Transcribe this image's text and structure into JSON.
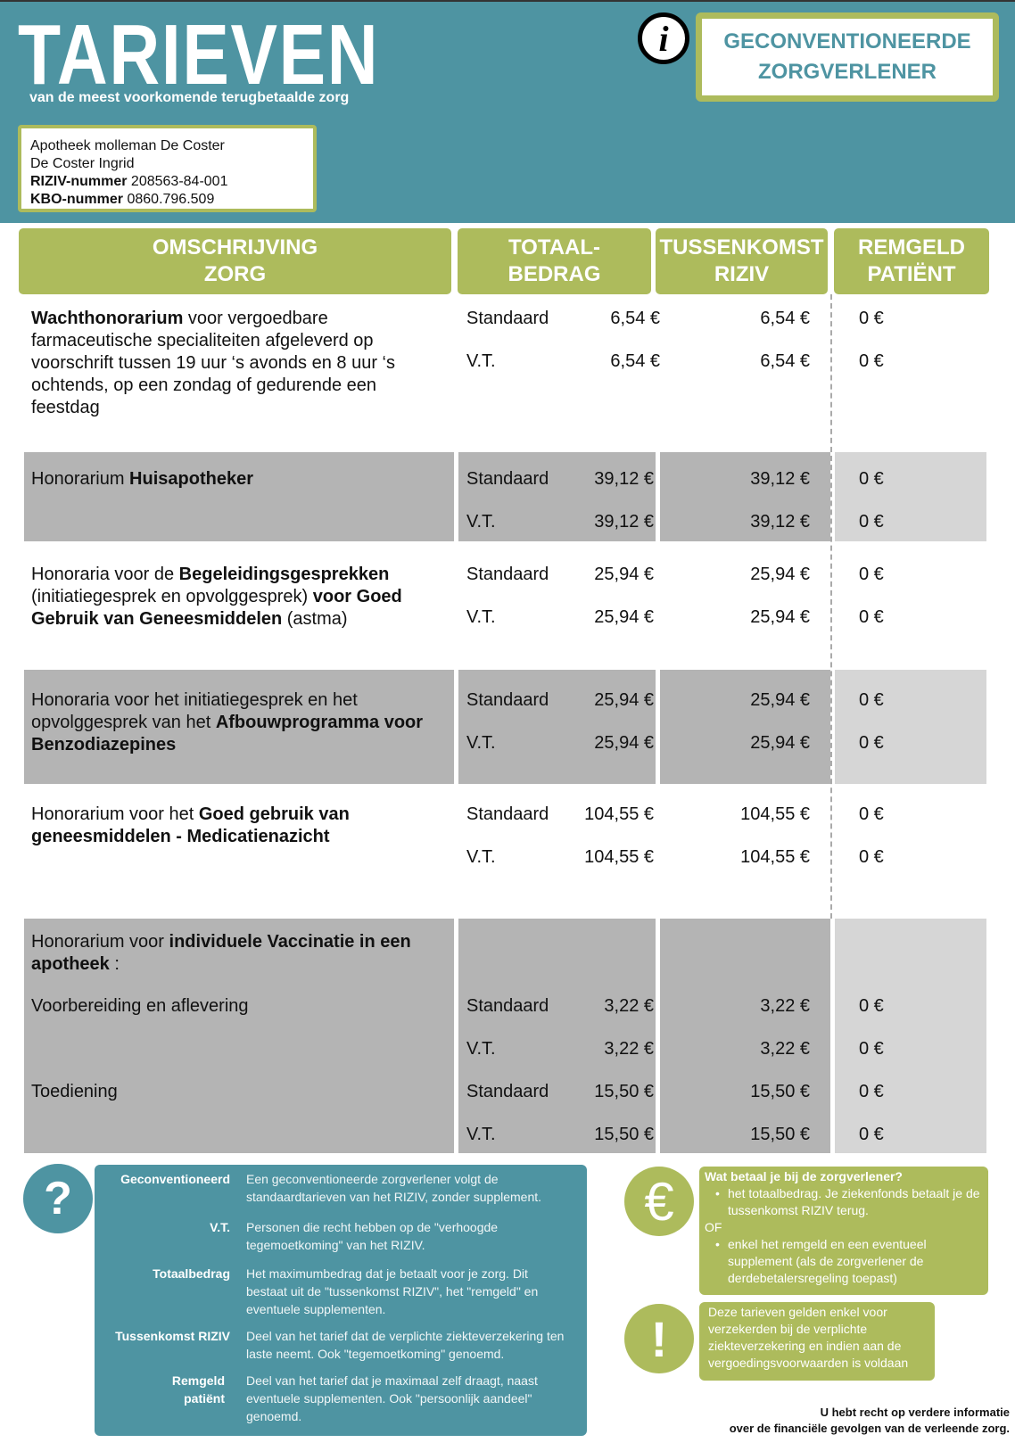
{
  "header": {
    "title": "TARIEVEN",
    "subtitle": "van de meest voorkomende terugbetaalde zorg",
    "badge_line1": "GECONVENTIONEERDE",
    "badge_line2": "ZORGVERLENER",
    "info_icon": "info-icon"
  },
  "pharmacy": {
    "name": "Apotheek molleman De Coster",
    "person": "De Coster Ingrid",
    "riziv_label": "RIZIV-nummer",
    "riziv_value": "208563-84-001",
    "kbo_label": "KBO-nummer",
    "kbo_value": "0860.796.509"
  },
  "columns": {
    "c1a": "OMSCHRIJVING",
    "c1b": "ZORG",
    "c2a": "TOTAAL-",
    "c2b": "BEDRAG",
    "c3a": "TUSSENKOMST",
    "c3b": "RIZIV",
    "c4a": "REMGELD",
    "c4b": "PATIËNT"
  },
  "colors": {
    "teal": "#4e94a2",
    "green": "#adbb5c",
    "gray": "#b4b4b4",
    "lightgray": "#d6d6d6"
  },
  "rows": [
    {
      "desc": [
        {
          "t": "Wachthonorarium",
          "b": true
        },
        {
          "t": " voor vergoedbare farmaceutische specialiteiten afgeleverd op voorschrift tussen 19 uur ‘s avonds en 8 uur ‘s ochtends, op een zondag of gedurende een feestdag",
          "b": false
        }
      ],
      "lines": [
        {
          "label": "Standaard",
          "totaal": "6,54 €",
          "tussenkomst": "6,54 €",
          "remgeld": "0 €"
        },
        {
          "label": "V.T.",
          "totaal": "6,54 €",
          "tussenkomst": "6,54 €",
          "remgeld": "0 €"
        }
      ]
    },
    {
      "desc": [
        {
          "t": "Honorarium ",
          "b": false
        },
        {
          "t": "Huisapotheker",
          "b": true
        }
      ],
      "lines": [
        {
          "label": "Standaard",
          "totaal": "39,12 €",
          "tussenkomst": "39,12 €",
          "remgeld": "0 €"
        },
        {
          "label": "V.T.",
          "totaal": "39,12 €",
          "tussenkomst": "39,12 €",
          "remgeld": "0 €"
        }
      ]
    },
    {
      "desc": [
        {
          "t": "Honoraria voor de ",
          "b": false
        },
        {
          "t": "Begeleidingsgesprekken",
          "b": true
        },
        {
          "t": " (initiatiegesprek en opvolggesprek) ",
          "b": false
        },
        {
          "t": "voor Goed Gebruik van Geneesmiddelen",
          "b": true
        },
        {
          "t": " (astma)",
          "b": false
        }
      ],
      "lines": [
        {
          "label": "Standaard",
          "totaal": "25,94 €",
          "tussenkomst": "25,94 €",
          "remgeld": "0 €"
        },
        {
          "label": "V.T.",
          "totaal": "25,94 €",
          "tussenkomst": "25,94 €",
          "remgeld": "0 €"
        }
      ]
    },
    {
      "desc": [
        {
          "t": "Honoraria voor het initiatiegesprek en het opvolggesprek van het ",
          "b": false
        },
        {
          "t": "Afbouwprogramma voor Benzodiazepines",
          "b": true
        }
      ],
      "lines": [
        {
          "label": "Standaard",
          "totaal": "25,94 €",
          "tussenkomst": "25,94 €",
          "remgeld": "0 €"
        },
        {
          "label": "V.T.",
          "totaal": "25,94 €",
          "tussenkomst": "25,94 €",
          "remgeld": "0 €"
        }
      ]
    },
    {
      "desc": [
        {
          "t": "Honorarium voor het ",
          "b": false
        },
        {
          "t": "Goed gebruik van geneesmiddelen - Medicatienazicht",
          "b": true
        }
      ],
      "lines": [
        {
          "label": "Standaard",
          "totaal": "104,55 €",
          "tussenkomst": "104,55 €",
          "remgeld": "0 €"
        },
        {
          "label": "V.T.",
          "totaal": "104,55 €",
          "tussenkomst": "104,55 €",
          "remgeld": "0 €"
        }
      ]
    },
    {
      "desc": [
        {
          "t": "Honorarium voor ",
          "b": false
        },
        {
          "t": "individuele Vaccinatie in een apotheek",
          "b": true
        },
        {
          "t": " :",
          "b": false
        }
      ],
      "lines": [
        {
          "sublabel": "Voorbereiding en aflevering",
          "label": "Standaard",
          "totaal": "3,22 €",
          "tussenkomst": "3,22 €",
          "remgeld": "0 €"
        },
        {
          "label": "V.T.",
          "totaal": "3,22 €",
          "tussenkomst": "3,22 €",
          "remgeld": "0 €"
        },
        {
          "sublabel": "Toediening",
          "label": "Standaard",
          "totaal": "15,50 €",
          "tussenkomst": "15,50 €",
          "remgeld": "0 €"
        },
        {
          "label": "V.T.",
          "totaal": "15,50 €",
          "tussenkomst": "15,50 €",
          "remgeld": "0 €"
        }
      ]
    }
  ],
  "glossary": [
    {
      "term": "Geconventioneerd",
      "def": "Een geconventioneerde zorgverlener volgt de standaardtarieven van het RIZIV, zonder supplement."
    },
    {
      "term": "V.T.",
      "def": "Personen die recht hebben op de \"verhoogde tegemoetkoming\" van het RIZIV."
    },
    {
      "term": "Totaalbedrag",
      "def": "Het maximumbedrag dat je betaalt voor je zorg. Dit bestaat uit de \"tussenkomst RIZIV\", het \"remgeld\" en eventuele supplementen."
    },
    {
      "term": "Tussenkomst RIZIV",
      "def": "Deel van het tarief dat de verplichte ziekteverzekering ten laste neemt. Ook \"tegemoetkoming\" genoemd."
    },
    {
      "term": "Remgeld patiënt",
      "def": "Deel van het tarief dat je maximaal zelf draagt, naast eventuele supplementen. Ook \"persoonlijk aandeel\" genoemd."
    }
  ],
  "payment": {
    "title": "Wat betaal je bij de zorgverlener?",
    "option1": "het totaalbedrag. Je ziekenfonds betaalt je de tussenkomst RIZIV terug.",
    "or": "OF",
    "option2": "enkel het remgeld en een eventueel supplement (als de zorgverlener de derdebetalersregeling toepast)"
  },
  "notice": "Deze tarieven gelden enkel voor verzekerden bij de verplichte ziekteverzekering en indien aan de vergoedingsvoorwaarden is voldaan",
  "icons": {
    "question": "?",
    "euro": "€",
    "exclamation": "!"
  },
  "footer": {
    "line1": "U hebt recht op verdere informatie",
    "line2": "over de financiële gevolgen van de verleende zorg."
  }
}
